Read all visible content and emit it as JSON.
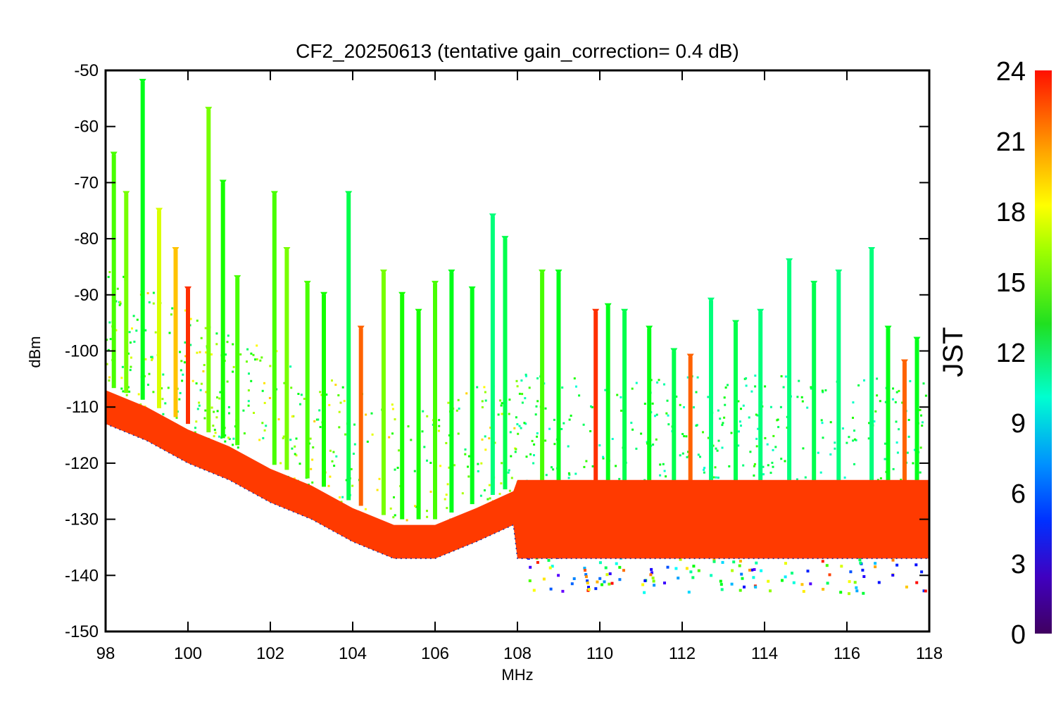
{
  "chart_data": {
    "type": "scatter",
    "title": "CF2_20250613 (tentative gain_correction=  0.4 dB)",
    "xlabel": "MHz",
    "ylabel": "dBm",
    "xlim": [
      98,
      118
    ],
    "ylim": [
      -150,
      -50
    ],
    "x_ticks": [
      "98",
      "100",
      "102",
      "104",
      "106",
      "108",
      "110",
      "112",
      "114",
      "116",
      "118"
    ],
    "y_ticks": [
      "-50",
      "-60",
      "-70",
      "-80",
      "-90",
      "-100",
      "-110",
      "-120",
      "-130",
      "-140",
      "-150"
    ],
    "colorbar": {
      "label": "JST",
      "range": [
        0,
        24
      ],
      "ticks": [
        "24",
        "21",
        "18",
        "15",
        "12",
        "9",
        "6",
        "3",
        "0"
      ]
    },
    "noise_floor": [
      {
        "x": 98,
        "y": -110
      },
      {
        "x": 99,
        "y": -113
      },
      {
        "x": 100,
        "y": -117
      },
      {
        "x": 101,
        "y": -120
      },
      {
        "x": 102,
        "y": -124
      },
      {
        "x": 103,
        "y": -127
      },
      {
        "x": 104,
        "y": -131
      },
      {
        "x": 105,
        "y": -134
      },
      {
        "x": 106,
        "y": -134
      },
      {
        "x": 107,
        "y": -131
      },
      {
        "x": 107.9,
        "y": -128
      },
      {
        "x": 108,
        "y": -129
      },
      {
        "x": 110,
        "y": -129
      },
      {
        "x": 112,
        "y": -129
      },
      {
        "x": 114,
        "y": -129
      },
      {
        "x": 116,
        "y": -129
      },
      {
        "x": 118,
        "y": -129
      }
    ],
    "peaks": [
      {
        "f": 98.2,
        "peak": -65,
        "jst": 15
      },
      {
        "f": 98.5,
        "peak": -72,
        "jst": 16
      },
      {
        "f": 98.9,
        "peak": -52,
        "jst": 13
      },
      {
        "f": 99.3,
        "peak": -75,
        "jst": 18
      },
      {
        "f": 99.7,
        "peak": -82,
        "jst": 20
      },
      {
        "f": 100.0,
        "peak": -89,
        "jst": 23
      },
      {
        "f": 100.5,
        "peak": -57,
        "jst": 16
      },
      {
        "f": 100.85,
        "peak": -70,
        "jst": 14
      },
      {
        "f": 101.2,
        "peak": -87,
        "jst": 15
      },
      {
        "f": 102.1,
        "peak": -72,
        "jst": 15
      },
      {
        "f": 102.4,
        "peak": -82,
        "jst": 16
      },
      {
        "f": 102.9,
        "peak": -88,
        "jst": 15
      },
      {
        "f": 103.3,
        "peak": -90,
        "jst": 14
      },
      {
        "f": 103.9,
        "peak": -72,
        "jst": 12
      },
      {
        "f": 104.2,
        "peak": -96,
        "jst": 22
      },
      {
        "f": 104.75,
        "peak": -86,
        "jst": 16
      },
      {
        "f": 105.2,
        "peak": -90,
        "jst": 14
      },
      {
        "f": 105.6,
        "peak": -93,
        "jst": 14
      },
      {
        "f": 106.0,
        "peak": -88,
        "jst": 15
      },
      {
        "f": 106.4,
        "peak": -86,
        "jst": 13
      },
      {
        "f": 106.9,
        "peak": -89,
        "jst": 13
      },
      {
        "f": 107.4,
        "peak": -76,
        "jst": 11
      },
      {
        "f": 107.7,
        "peak": -80,
        "jst": 12
      },
      {
        "f": 108.6,
        "peak": -86,
        "jst": 15
      },
      {
        "f": 109.0,
        "peak": -86,
        "jst": 13
      },
      {
        "f": 109.9,
        "peak": -93,
        "jst": 23
      },
      {
        "f": 110.2,
        "peak": -92,
        "jst": 13
      },
      {
        "f": 110.6,
        "peak": -93,
        "jst": 12
      },
      {
        "f": 111.2,
        "peak": -96,
        "jst": 13
      },
      {
        "f": 111.8,
        "peak": -100,
        "jst": 12
      },
      {
        "f": 112.2,
        "peak": -101,
        "jst": 22
      },
      {
        "f": 112.7,
        "peak": -91,
        "jst": 11
      },
      {
        "f": 113.3,
        "peak": -95,
        "jst": 12
      },
      {
        "f": 113.9,
        "peak": -93,
        "jst": 11
      },
      {
        "f": 114.6,
        "peak": -84,
        "jst": 11
      },
      {
        "f": 115.2,
        "peak": -88,
        "jst": 12
      },
      {
        "f": 115.8,
        "peak": -86,
        "jst": 11
      },
      {
        "f": 116.6,
        "peak": -82,
        "jst": 11
      },
      {
        "f": 117.0,
        "peak": -96,
        "jst": 13
      },
      {
        "f": 117.4,
        "peak": -102,
        "jst": 22
      },
      {
        "f": 117.7,
        "peak": -98,
        "jst": 13
      }
    ]
  }
}
